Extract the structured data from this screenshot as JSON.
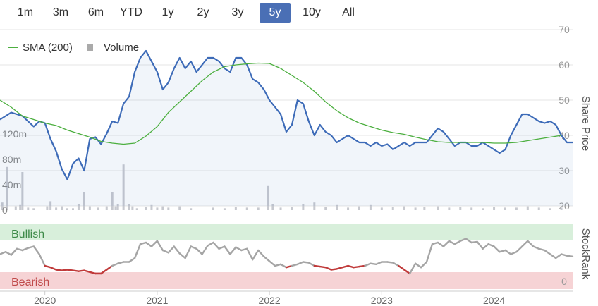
{
  "range_selector": {
    "buttons": [
      "1m",
      "3m",
      "6m",
      "YTD",
      "1y",
      "2y",
      "3y",
      "5y",
      "10y",
      "All"
    ],
    "active": "5y"
  },
  "legend": {
    "sma_label": "SMA (200)",
    "volume_label": "Volume"
  },
  "colors": {
    "price": "#3d6bb8",
    "sma": "#4caf3f",
    "volume": "#c7c9cf",
    "bullish_band": "#d8efdb",
    "bearish_band": "#f6d3d5",
    "stockrank_line": "#a5a5a5",
    "stockrank_bearish": "#c03a3a",
    "active_button": "#4a6fb5"
  },
  "chart_data": [
    {
      "type": "line",
      "ylabel_right": "Share Price",
      "ylim": [
        20,
        70
      ],
      "y_ticks": [
        "70",
        "60",
        "50",
        "40",
        "30",
        "20"
      ],
      "volume_ticks": [
        "120m",
        "80m",
        "40m",
        "0"
      ],
      "volume_ylim": [
        0,
        200
      ],
      "x_ticks": [
        "2020",
        "2021",
        "2022",
        "2023",
        "2024"
      ],
      "xlim": [
        2019.6,
        2024.7
      ],
      "series": [
        {
          "name": "Share Price",
          "x": [
            2019.6,
            2019.65,
            2019.7,
            2019.75,
            2019.8,
            2019.85,
            2019.9,
            2019.95,
            2020.0,
            2020.05,
            2020.1,
            2020.15,
            2020.2,
            2020.25,
            2020.3,
            2020.35,
            2020.4,
            2020.45,
            2020.5,
            2020.55,
            2020.6,
            2020.65,
            2020.7,
            2020.75,
            2020.8,
            2020.85,
            2020.9,
            2020.95,
            2021.0,
            2021.05,
            2021.1,
            2021.15,
            2021.2,
            2021.25,
            2021.3,
            2021.35,
            2021.4,
            2021.45,
            2021.5,
            2021.55,
            2021.6,
            2021.65,
            2021.7,
            2021.75,
            2021.8,
            2021.85,
            2021.9,
            2021.95,
            2022.0,
            2022.05,
            2022.1,
            2022.15,
            2022.2,
            2022.25,
            2022.3,
            2022.35,
            2022.4,
            2022.45,
            2022.5,
            2022.55,
            2022.6,
            2022.65,
            2022.7,
            2022.75,
            2022.8,
            2022.85,
            2022.9,
            2022.95,
            2023.0,
            2023.05,
            2023.1,
            2023.15,
            2023.2,
            2023.25,
            2023.3,
            2023.35,
            2023.4,
            2023.45,
            2023.5,
            2023.55,
            2023.6,
            2023.65,
            2023.7,
            2023.75,
            2023.8,
            2023.85,
            2023.9,
            2023.95,
            2024.0,
            2024.05,
            2024.1,
            2024.15,
            2024.2,
            2024.25,
            2024.3,
            2024.35,
            2024.4,
            2024.45,
            2024.5,
            2024.55,
            2024.6,
            2024.65,
            2024.7
          ],
          "values": [
            44.5,
            45.5,
            46.5,
            46,
            45.5,
            44,
            42.5,
            44,
            43.5,
            39,
            35.5,
            30.5,
            27.5,
            32,
            33.5,
            30,
            39,
            39.5,
            37.5,
            40.5,
            44,
            43.5,
            49,
            51,
            58,
            62,
            64,
            61,
            58,
            53,
            55,
            59,
            62,
            59,
            61,
            58,
            60,
            62,
            62,
            61,
            59,
            58,
            62,
            62,
            60,
            56,
            55,
            53,
            50,
            48,
            46,
            41,
            43,
            50,
            49,
            44,
            40,
            43,
            41,
            40,
            38,
            39,
            40,
            39,
            38,
            38,
            37,
            38,
            37,
            37.5,
            36,
            37,
            38,
            37,
            38,
            38,
            38,
            40,
            42,
            41,
            39,
            37,
            38,
            38,
            37,
            37,
            38,
            37,
            36,
            35,
            36,
            40,
            43,
            46,
            46,
            45,
            44,
            43.5,
            44,
            43,
            40,
            38,
            38
          ]
        },
        {
          "name": "SMA (200)",
          "x": [
            2019.6,
            2019.7,
            2019.8,
            2019.9,
            2020.0,
            2020.1,
            2020.2,
            2020.3,
            2020.4,
            2020.5,
            2020.6,
            2020.7,
            2020.8,
            2020.9,
            2021.0,
            2021.1,
            2021.2,
            2021.3,
            2021.4,
            2021.5,
            2021.6,
            2021.7,
            2021.8,
            2021.9,
            2022.0,
            2022.1,
            2022.2,
            2022.3,
            2022.4,
            2022.5,
            2022.6,
            2022.7,
            2022.8,
            2022.9,
            2023.0,
            2023.1,
            2023.2,
            2023.3,
            2023.4,
            2023.5,
            2023.6,
            2023.7,
            2023.8,
            2023.9,
            2024.0,
            2024.1,
            2024.2,
            2024.3,
            2024.4,
            2024.5,
            2024.6
          ],
          "values": [
            50,
            48,
            45.5,
            44.5,
            43.5,
            42.8,
            41.5,
            40.5,
            39.5,
            38.3,
            37.8,
            37.5,
            37.8,
            39.8,
            42.5,
            46.5,
            49.5,
            52.5,
            55.5,
            58,
            59.5,
            60,
            60.3,
            60.5,
            60.4,
            59,
            57,
            55,
            52.5,
            49.5,
            47,
            45,
            43.5,
            42.5,
            41.5,
            40.8,
            40.3,
            39.5,
            38.8,
            38.2,
            38,
            38,
            38,
            38,
            37.8,
            37.8,
            38,
            38.5,
            39,
            39.5,
            40
          ]
        }
      ],
      "volume": {
        "name": "Volume",
        "x": [
          2019.62,
          2019.66,
          2019.74,
          2019.78,
          2019.8,
          2019.85,
          2019.9,
          2020.02,
          2020.05,
          2020.1,
          2020.15,
          2020.2,
          2020.25,
          2020.3,
          2020.35,
          2020.4,
          2020.47,
          2020.55,
          2020.6,
          2020.63,
          2020.65,
          2020.7,
          2020.75,
          2020.78,
          2020.82,
          2020.9,
          2020.95,
          2021.0,
          2021.05,
          2021.1,
          2021.2,
          2021.3,
          2021.5,
          2021.6,
          2021.7,
          2021.8,
          2021.9,
          2021.99,
          2022.03,
          2022.1,
          2022.2,
          2022.3,
          2022.4,
          2022.5,
          2022.6,
          2022.7,
          2022.8,
          2022.9,
          2023.0,
          2023.1,
          2023.2,
          2023.3,
          2023.38,
          2023.5,
          2023.6,
          2023.7,
          2023.8,
          2023.9,
          2024.0,
          2024.1,
          2024.2,
          2024.3,
          2024.4,
          2024.5,
          2024.6
        ],
        "values": [
          12,
          68,
          6,
          8,
          60,
          4,
          3,
          6,
          14,
          4,
          6,
          3,
          3,
          10,
          28,
          6,
          4,
          6,
          28,
          6,
          10,
          72,
          10,
          6,
          3,
          5,
          8,
          4,
          6,
          4,
          6,
          3,
          4,
          3,
          5,
          4,
          4,
          38,
          10,
          4,
          5,
          10,
          12,
          5,
          8,
          4,
          6,
          8,
          4,
          5,
          6,
          4,
          5,
          6,
          4,
          5,
          4,
          3,
          5,
          4,
          4,
          6,
          4,
          3,
          4
        ]
      }
    },
    {
      "type": "line",
      "ylabel_right": "StockRank",
      "band_labels": {
        "bullish": "Bullish",
        "bearish": "Bearish"
      },
      "y_tick": "0",
      "ylim": [
        0,
        100
      ],
      "series": [
        {
          "name": "StockRank",
          "x": [
            2019.6,
            2019.65,
            2019.7,
            2019.75,
            2019.8,
            2019.85,
            2019.9,
            2019.95,
            2020.0,
            2020.05,
            2020.1,
            2020.15,
            2020.2,
            2020.25,
            2020.3,
            2020.35,
            2020.4,
            2020.45,
            2020.5,
            2020.55,
            2020.6,
            2020.65,
            2020.7,
            2020.75,
            2020.8,
            2020.85,
            2020.9,
            2020.95,
            2021.0,
            2021.05,
            2021.1,
            2021.15,
            2021.2,
            2021.25,
            2021.3,
            2021.35,
            2021.4,
            2021.45,
            2021.5,
            2021.55,
            2021.6,
            2021.65,
            2021.7,
            2021.75,
            2021.8,
            2021.85,
            2021.9,
            2021.95,
            2022.0,
            2022.05,
            2022.1,
            2022.15,
            2022.2,
            2022.25,
            2022.3,
            2022.35,
            2022.4,
            2022.45,
            2022.5,
            2022.55,
            2022.6,
            2022.65,
            2022.7,
            2022.75,
            2022.8,
            2022.85,
            2022.9,
            2022.95,
            2023.0,
            2023.05,
            2023.1,
            2023.15,
            2023.2,
            2023.25,
            2023.3,
            2023.35,
            2023.4,
            2023.45,
            2023.5,
            2023.55,
            2023.6,
            2023.65,
            2023.7,
            2023.75,
            2023.8,
            2023.85,
            2023.9,
            2023.95,
            2024.0,
            2024.05,
            2024.1,
            2024.15,
            2024.2,
            2024.25,
            2024.3,
            2024.35,
            2024.4,
            2024.45,
            2024.5,
            2024.55,
            2024.6,
            2024.65,
            2024.7
          ],
          "values": [
            45,
            48,
            44,
            52,
            50,
            53,
            55,
            45,
            30,
            28,
            25,
            24,
            25,
            24,
            23,
            24,
            22,
            20,
            20,
            25,
            30,
            33,
            35,
            35,
            40,
            58,
            60,
            55,
            62,
            50,
            47,
            55,
            46,
            40,
            55,
            52,
            45,
            56,
            60,
            52,
            55,
            45,
            54,
            50,
            52,
            38,
            50,
            42,
            36,
            30,
            32,
            28,
            30,
            32,
            35,
            34,
            30,
            29,
            28,
            25,
            26,
            28,
            30,
            28,
            29,
            30,
            33,
            32,
            35,
            35,
            34,
            30,
            25,
            20,
            33,
            28,
            35,
            58,
            60,
            55,
            62,
            58,
            62,
            65,
            60,
            61,
            52,
            58,
            55,
            48,
            50,
            45,
            48,
            55,
            62,
            55,
            52,
            50,
            45,
            40,
            45,
            43,
            42
          ],
          "bearish_threshold": 30
        }
      ]
    }
  ]
}
